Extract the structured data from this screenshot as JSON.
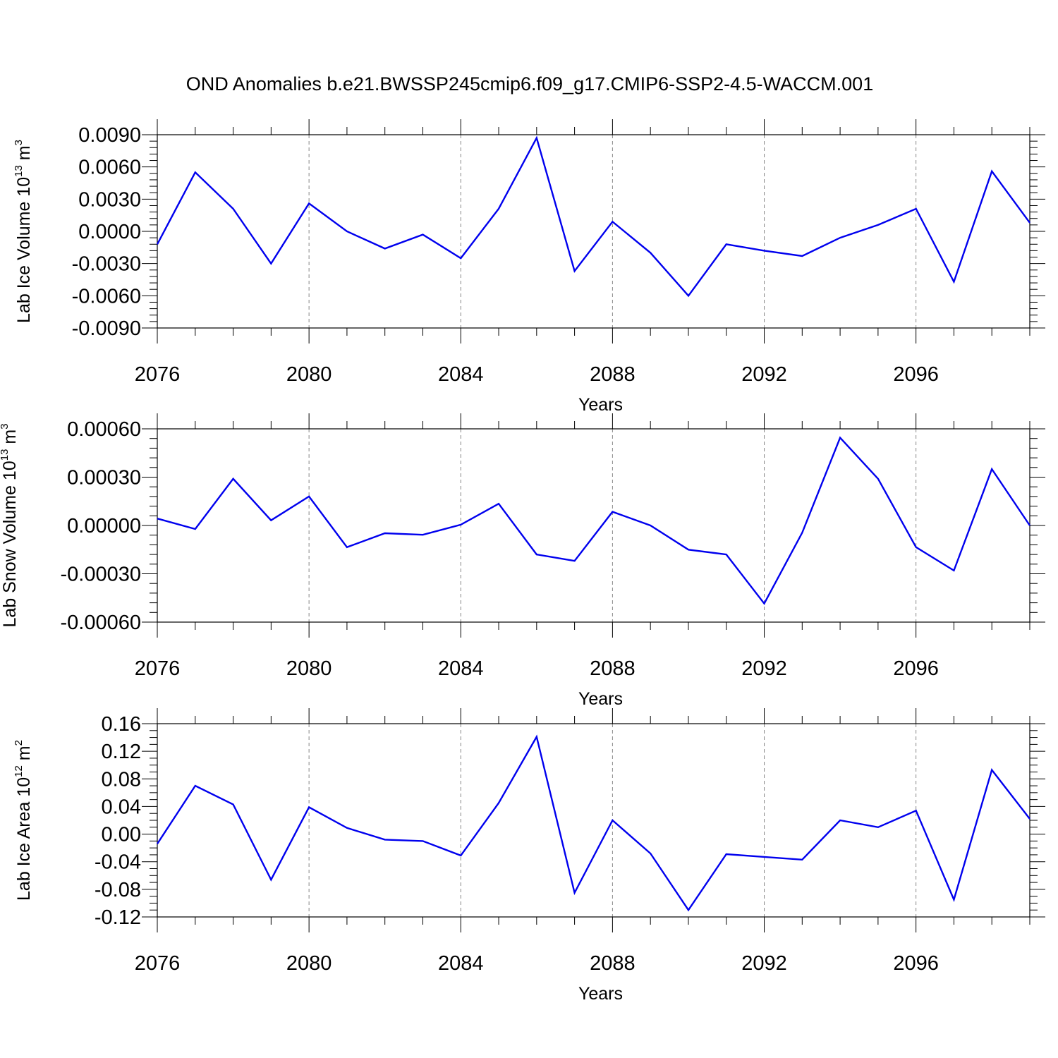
{
  "title": "OND Anomalies b.e21.BWSSP245cmip6.f09_g17.CMIP6-SSP2-4.5-WACCM.001",
  "chart_data": [
    {
      "type": "line",
      "ylabel": "Lab Ice Volume 10",
      "ylabel_sup": "13",
      "ylabel_unit": " m",
      "ylabel_unit_sup": "3",
      "xlabel": "Years",
      "xlim": [
        2076,
        2099
      ],
      "ylim": [
        -0.009,
        0.009
      ],
      "grid": "vertical-dashed",
      "x_ticks": [
        2076,
        2080,
        2084,
        2088,
        2092,
        2096
      ],
      "x_tick_labels": [
        "2076",
        "2080",
        "2084",
        "2088",
        "2092",
        "2096"
      ],
      "y_ticks": [
        0.009,
        0.006,
        0.003,
        0.0,
        -0.003,
        -0.006,
        -0.009
      ],
      "y_tick_labels": [
        "0.0090",
        "0.0060",
        "0.0030",
        "0.0000",
        "-0.0030",
        "-0.0060",
        "-0.0090"
      ],
      "series": [
        {
          "color": "#0000ee",
          "x": [
            2076,
            2077,
            2078,
            2079,
            2080,
            2081,
            2082,
            2083,
            2084,
            2085,
            2086,
            2087,
            2088,
            2089,
            2090,
            2091,
            2092,
            2093,
            2094,
            2095,
            2096,
            2097,
            2098,
            2099
          ],
          "values": [
            -0.0012,
            0.0055,
            0.0021,
            -0.003,
            0.0026,
            0.0,
            -0.0016,
            -0.0003,
            -0.0025,
            0.0021,
            0.0087,
            -0.0037,
            0.0009,
            -0.002,
            -0.006,
            -0.0012,
            -0.0018,
            -0.0023,
            -0.0006,
            0.0006,
            0.0021,
            -0.0047,
            0.0056,
            0.0008
          ]
        }
      ]
    },
    {
      "type": "line",
      "ylabel": "Lab Snow Volume 10",
      "ylabel_sup": "13",
      "ylabel_unit": " m",
      "ylabel_unit_sup": "3",
      "xlabel": "Years",
      "xlim": [
        2076,
        2099
      ],
      "ylim": [
        -0.0006,
        0.0006
      ],
      "grid": "vertical-dashed",
      "x_ticks": [
        2076,
        2080,
        2084,
        2088,
        2092,
        2096
      ],
      "x_tick_labels": [
        "2076",
        "2080",
        "2084",
        "2088",
        "2092",
        "2096"
      ],
      "y_ticks": [
        0.0006,
        0.0003,
        0.0,
        -0.0003,
        -0.0006
      ],
      "y_tick_labels": [
        "0.00060",
        "0.00030",
        "0.00000",
        "-0.00030",
        "-0.00060"
      ],
      "series": [
        {
          "color": "#0000ee",
          "x": [
            2076,
            2077,
            2078,
            2079,
            2080,
            2081,
            2082,
            2083,
            2084,
            2085,
            2086,
            2087,
            2088,
            2089,
            2090,
            2091,
            2092,
            2093,
            2094,
            2095,
            2096,
            2097,
            2098,
            2099
          ],
          "values": [
            4.3e-05,
            -2.2e-05,
            0.00029,
            3.2e-05,
            0.00018,
            -0.000135,
            -4.8e-05,
            -5.8e-05,
            5e-06,
            0.000135,
            -0.00018,
            -0.00022,
            8.5e-05,
            0.0,
            -0.00015,
            -0.00018,
            -0.000485,
            -4.5e-05,
            0.000545,
            0.00029,
            -0.000135,
            -0.00028,
            0.00035,
            0.0
          ]
        }
      ]
    },
    {
      "type": "line",
      "ylabel": "Lab Ice Area 10",
      "ylabel_sup": "12",
      "ylabel_unit": " m",
      "ylabel_unit_sup": "2",
      "xlabel": "Years",
      "xlim": [
        2076,
        2099
      ],
      "ylim": [
        -0.12,
        0.16
      ],
      "grid": "vertical-dashed",
      "x_ticks": [
        2076,
        2080,
        2084,
        2088,
        2092,
        2096
      ],
      "x_tick_labels": [
        "2076",
        "2080",
        "2084",
        "2088",
        "2092",
        "2096"
      ],
      "y_ticks": [
        0.16,
        0.12,
        0.08,
        0.04,
        0.0,
        -0.04,
        -0.08,
        -0.12
      ],
      "y_tick_labels": [
        "0.16",
        "0.12",
        "0.08",
        "0.04",
        "0.00",
        "-0.04",
        "-0.08",
        "-0.12"
      ],
      "series": [
        {
          "color": "#0000ee",
          "x": [
            2076,
            2077,
            2078,
            2079,
            2080,
            2081,
            2082,
            2083,
            2084,
            2085,
            2086,
            2087,
            2088,
            2089,
            2090,
            2091,
            2092,
            2093,
            2094,
            2095,
            2096,
            2097,
            2098,
            2099
          ],
          "values": [
            -0.014,
            0.07,
            0.043,
            -0.066,
            0.039,
            0.009,
            -0.008,
            -0.01,
            -0.031,
            0.045,
            0.141,
            -0.085,
            0.02,
            -0.028,
            -0.11,
            -0.029,
            -0.033,
            -0.037,
            0.02,
            0.01,
            0.034,
            -0.095,
            0.093,
            0.022
          ]
        }
      ]
    }
  ]
}
